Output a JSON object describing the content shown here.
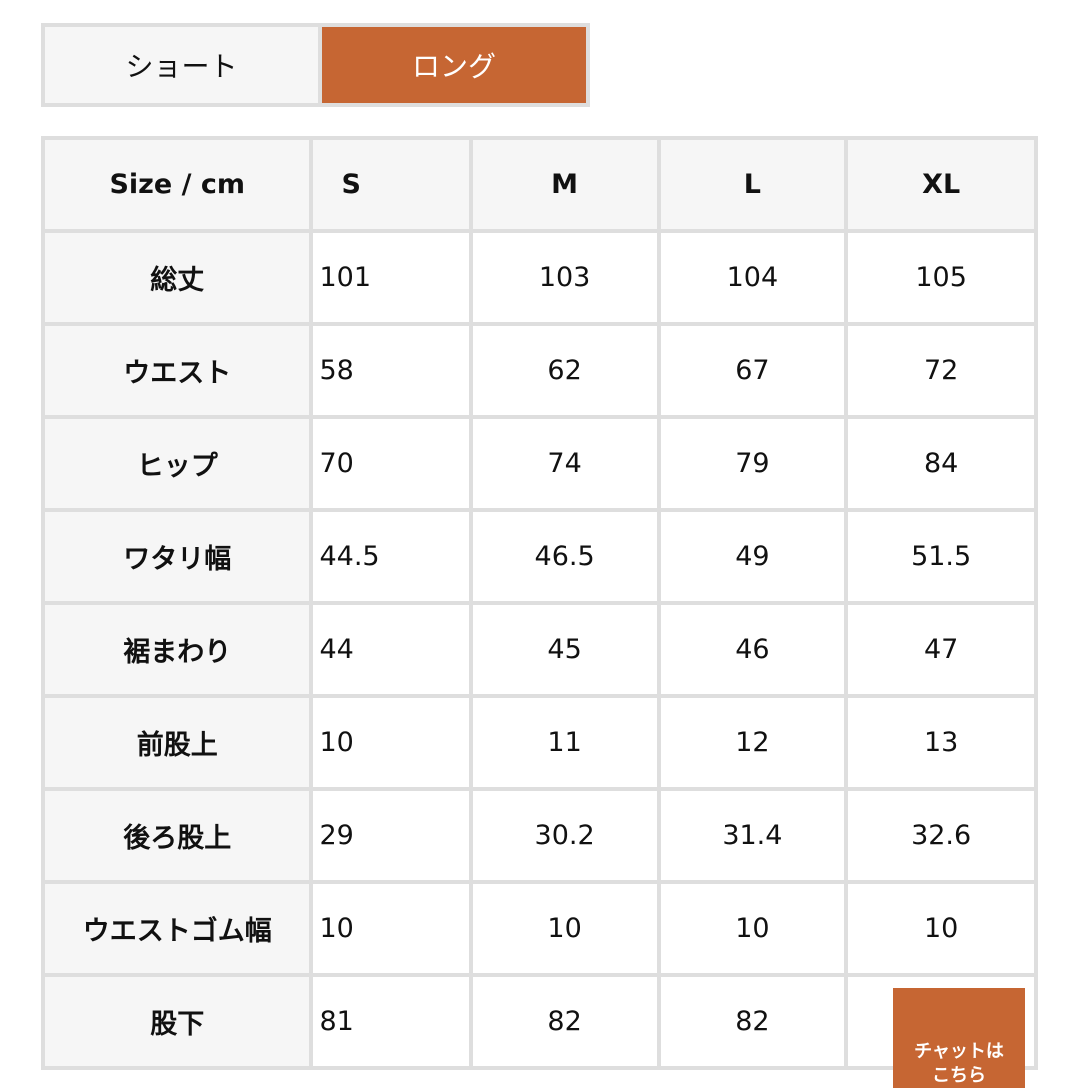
{
  "tabs": [
    {
      "label": "ショート",
      "active": false
    },
    {
      "label": "ロング",
      "active": true
    }
  ],
  "accent_color": "#c66633",
  "table": {
    "headers": [
      "Size / cm",
      "S",
      "M",
      "L",
      "XL"
    ],
    "rows": [
      {
        "label": "総丈",
        "values": [
          "101",
          "103",
          "104",
          "105"
        ]
      },
      {
        "label": "ウエスト",
        "values": [
          "58",
          "62",
          "67",
          "72"
        ]
      },
      {
        "label": "ヒップ",
        "values": [
          "70",
          "74",
          "79",
          "84"
        ]
      },
      {
        "label": "ワタリ幅",
        "values": [
          "44.5",
          "46.5",
          "49",
          "51.5"
        ]
      },
      {
        "label": "裾まわり",
        "values": [
          "44",
          "45",
          "46",
          "47"
        ]
      },
      {
        "label": "前股上",
        "values": [
          "10",
          "11",
          "12",
          "13"
        ]
      },
      {
        "label": "後ろ股上",
        "values": [
          "29",
          "30.2",
          "31.4",
          "32.6"
        ]
      },
      {
        "label": "ウエストゴム幅",
        "values": [
          "10",
          "10",
          "10",
          "10"
        ]
      },
      {
        "label": "股下",
        "values": [
          "81",
          "82",
          "82",
          ""
        ]
      }
    ]
  },
  "chat_button": {
    "line1": "チャットは",
    "line2": "こちら"
  }
}
